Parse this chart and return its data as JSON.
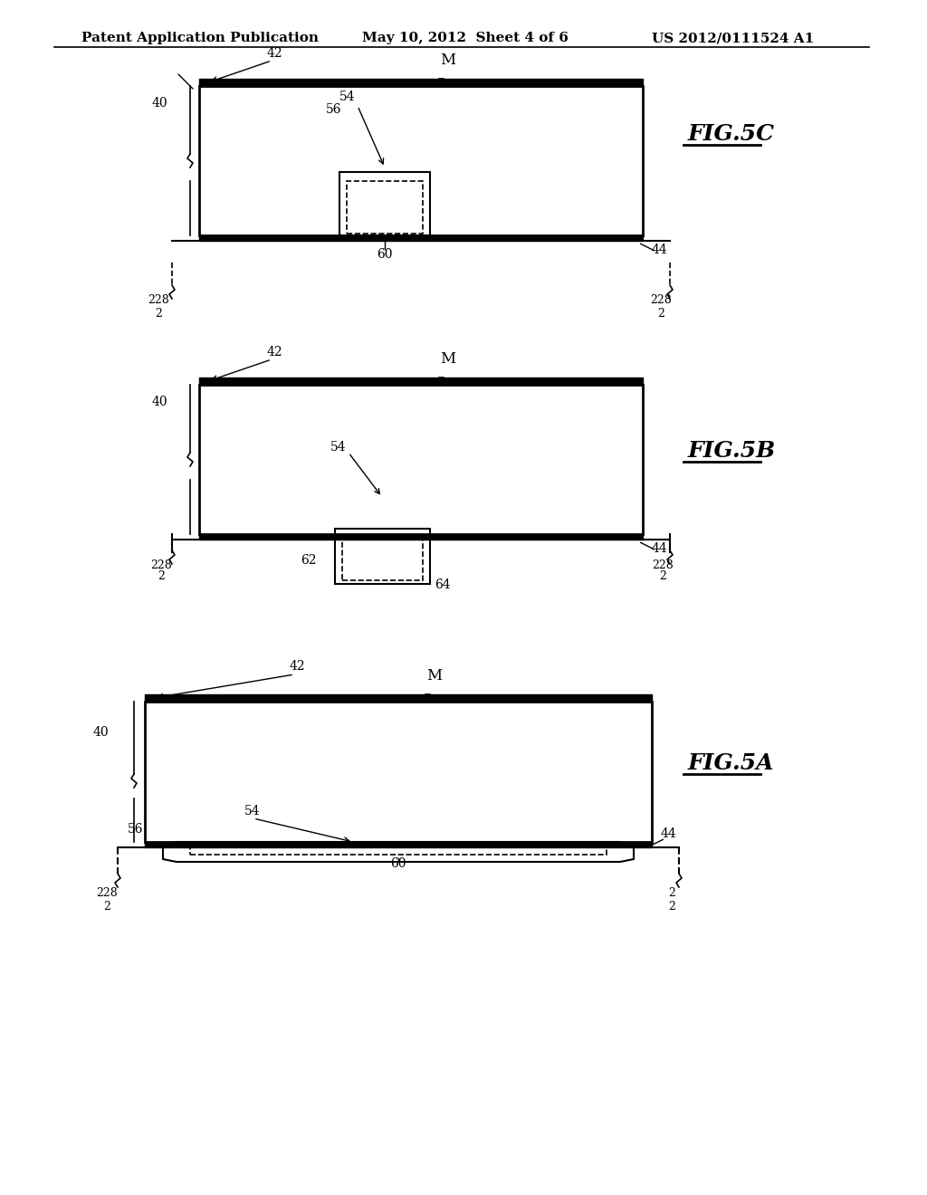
{
  "header_left": "Patent Application Publication",
  "header_mid": "May 10, 2012  Sheet 4 of 6",
  "header_right": "US 2012/0111524 A1",
  "background_color": "#ffffff",
  "line_color": "#000000",
  "fig_label_5C": "FIG.5C",
  "fig_label_5B": "FIG.5B",
  "fig_label_5A": "FIG.5A"
}
